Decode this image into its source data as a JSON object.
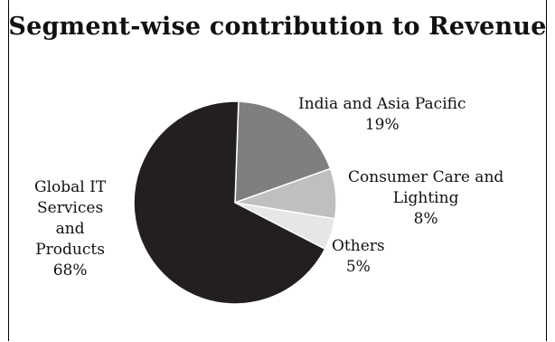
{
  "chart_data": {
    "type": "pie",
    "title": "Segment-wise contribution to Revenue",
    "slices": [
      {
        "label_lines": [
          "India and Asia Pacific"
        ],
        "value_label": "19%",
        "value": 19,
        "color": "#7f7f7f"
      },
      {
        "label_lines": [
          "Consumer Care and",
          "Lighting"
        ],
        "value_label": "8%",
        "value": 8,
        "color": "#bfbfbf"
      },
      {
        "label_lines": [
          "Others"
        ],
        "value_label": "5%",
        "value": 5,
        "color": "#e6e6e6"
      },
      {
        "label_lines": [
          "Global IT",
          "Services",
          "and",
          "Products"
        ],
        "value_label": "68%",
        "value": 68,
        "color": "#231f20"
      }
    ]
  }
}
